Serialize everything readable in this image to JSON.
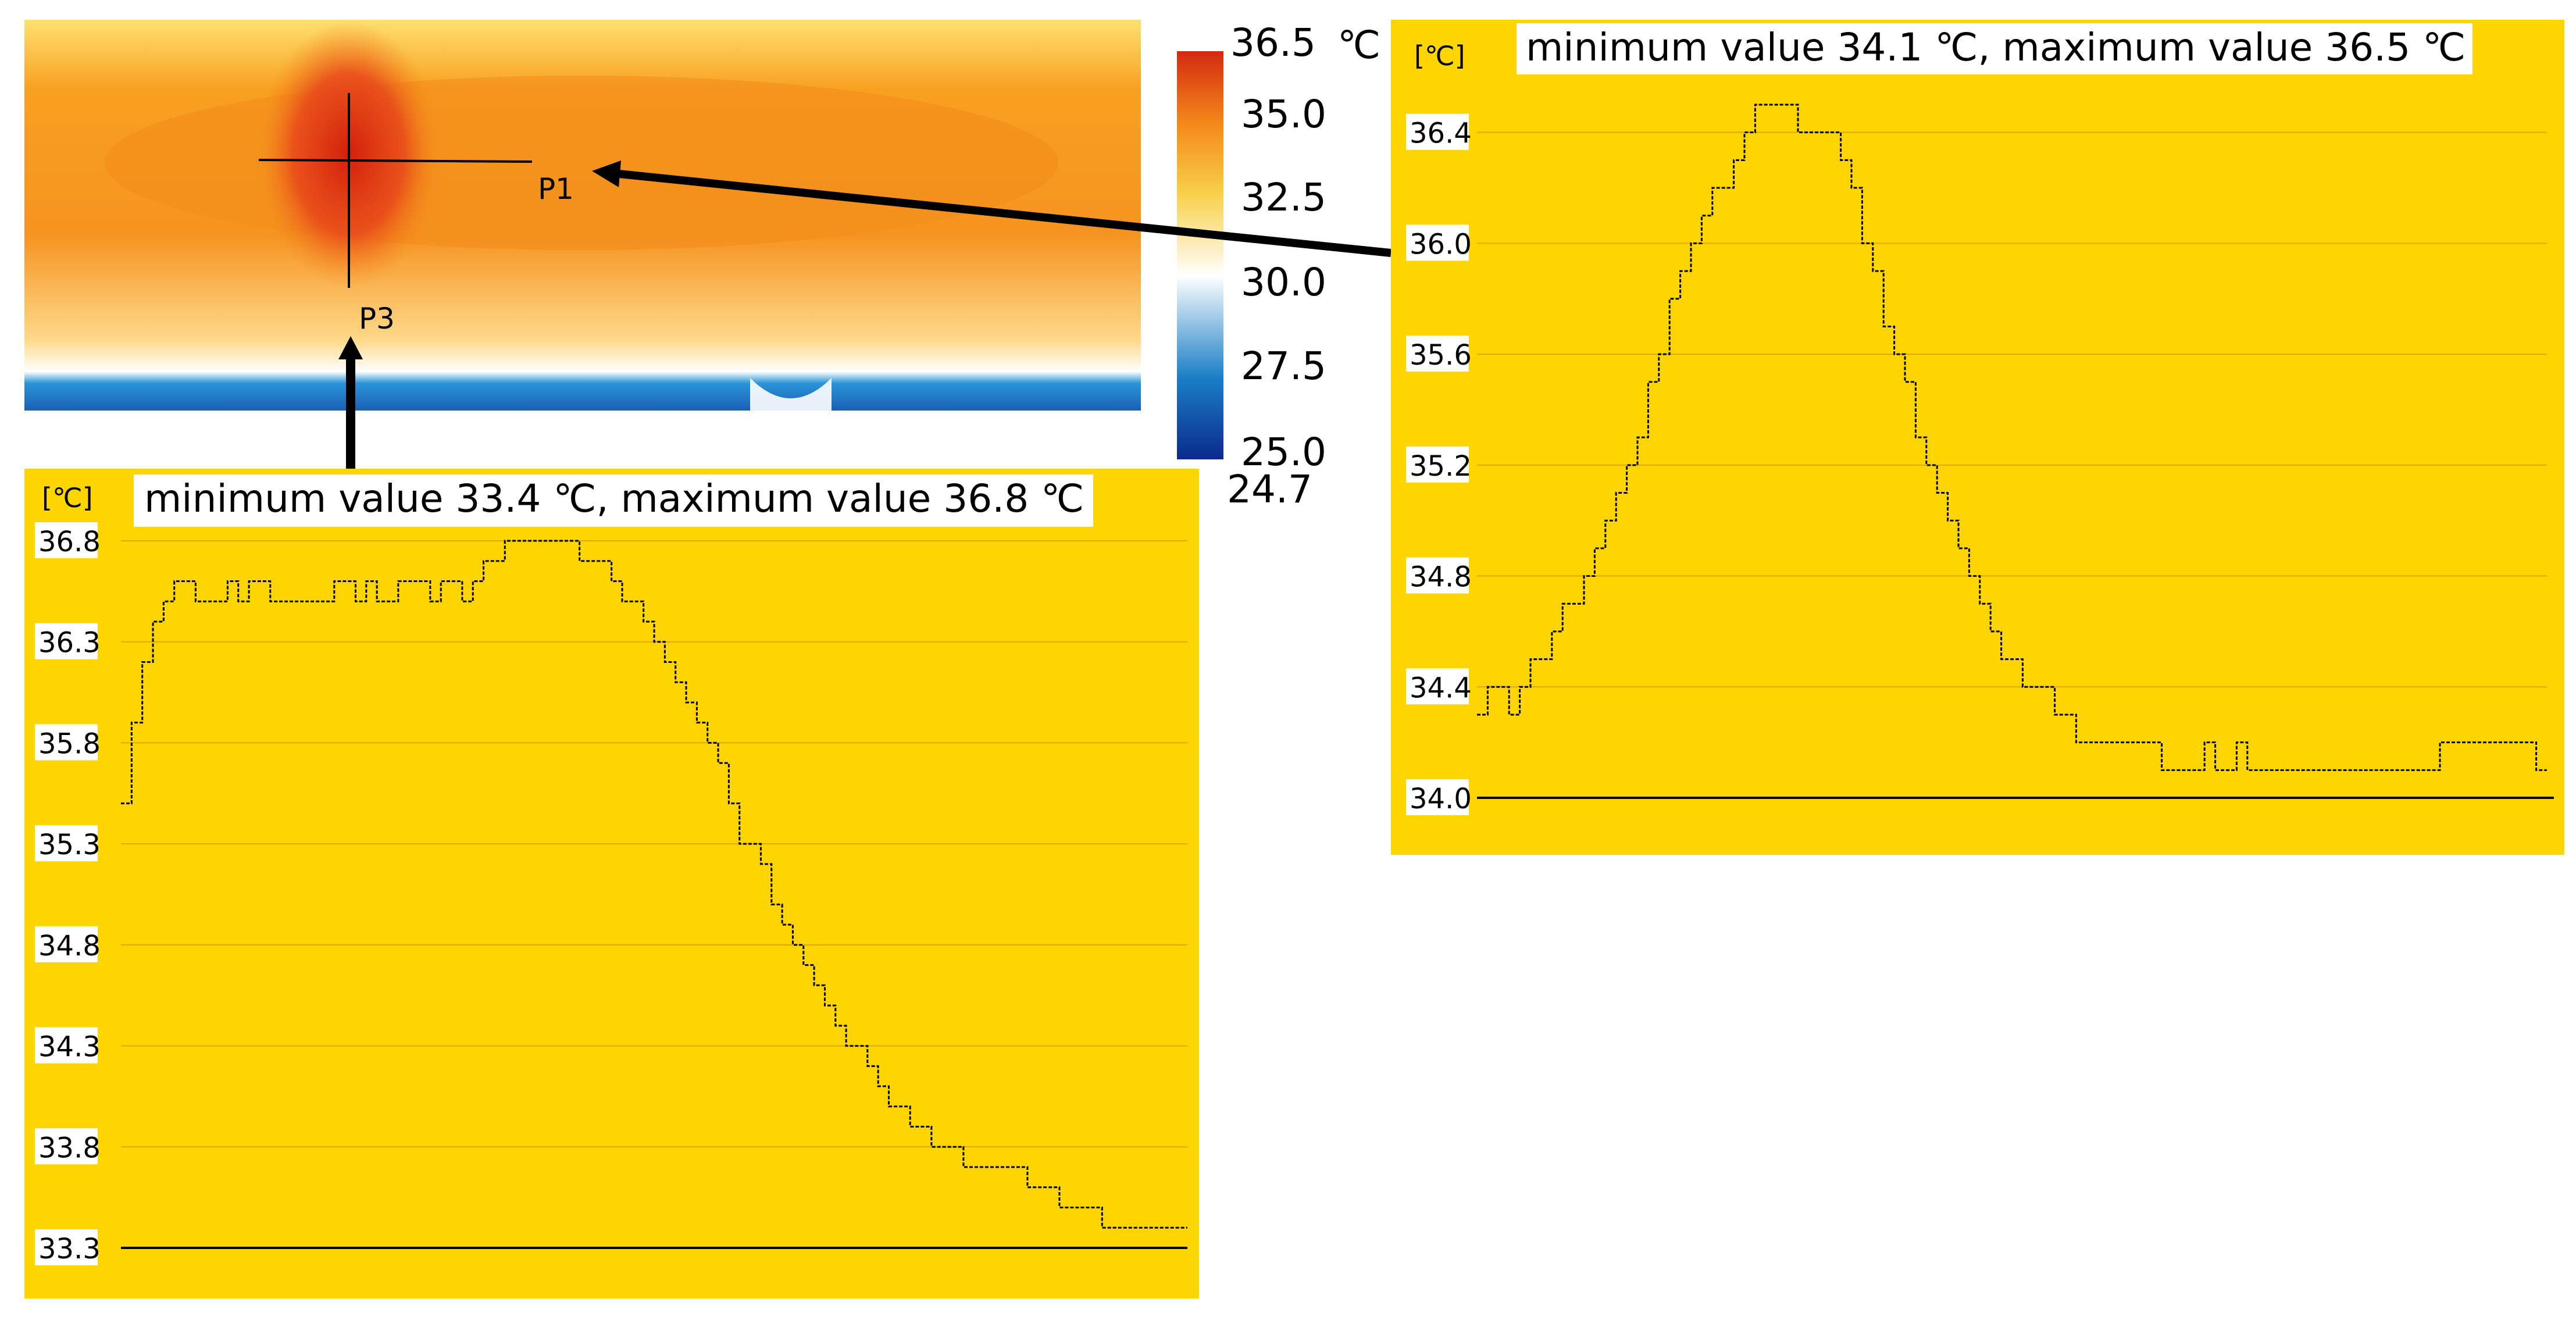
{
  "thermal_image": {
    "point_labels": [
      "P1",
      "P3"
    ]
  },
  "colorbar": {
    "ticks": [
      "36.5",
      "35.0",
      "32.5",
      "30.0",
      "27.5",
      "25.0"
    ],
    "unit": "℃",
    "bottom_label": "24.7",
    "colors": [
      "#0a2a8c",
      "#1a7fc6",
      "#ffffff",
      "#f8d04a",
      "#f58a1a",
      "#d22a10"
    ]
  },
  "chart_data": [
    {
      "type": "line",
      "id": "p3",
      "title": "minimum value 33.4 ℃, maximum value 36.8 ℃",
      "ylabel": "[℃]",
      "xlabel": "",
      "yticks": [
        "36.8",
        "36.3",
        "35.8",
        "35.3",
        "34.8",
        "34.3",
        "33.8",
        "33.3"
      ],
      "ylim": [
        33.3,
        36.8
      ],
      "grid": true,
      "background": "#ffd500",
      "series": [
        {
          "x": [
            0,
            1,
            2,
            3,
            4,
            5,
            6,
            7,
            8,
            9,
            10,
            11,
            12,
            13,
            14,
            15,
            16,
            17,
            18,
            19,
            20,
            21,
            22,
            23,
            24,
            25,
            26,
            27,
            28,
            29,
            30,
            31,
            32,
            33,
            34,
            35,
            36,
            37,
            38,
            39,
            40,
            41,
            42,
            43,
            44,
            45,
            46,
            47,
            48,
            49,
            50,
            51,
            52,
            53,
            54,
            55,
            56,
            57,
            58,
            59,
            60,
            61,
            62,
            63,
            64,
            65,
            66,
            67,
            68,
            69,
            70,
            71,
            72,
            73,
            74,
            75,
            76,
            77,
            78,
            79,
            80,
            81,
            82,
            83,
            84,
            85,
            86,
            87,
            88,
            89,
            90,
            91,
            92,
            93,
            94,
            95,
            96,
            97,
            98,
            99,
            100
          ],
          "values": [
            35.5,
            35.9,
            36.2,
            36.4,
            36.5,
            36.6,
            36.6,
            36.5,
            36.5,
            36.5,
            36.6,
            36.5,
            36.6,
            36.6,
            36.5,
            36.5,
            36.5,
            36.5,
            36.5,
            36.5,
            36.6,
            36.6,
            36.5,
            36.6,
            36.5,
            36.5,
            36.6,
            36.6,
            36.6,
            36.5,
            36.6,
            36.6,
            36.5,
            36.6,
            36.7,
            36.7,
            36.8,
            36.8,
            36.8,
            36.8,
            36.8,
            36.8,
            36.8,
            36.7,
            36.7,
            36.7,
            36.6,
            36.5,
            36.5,
            36.4,
            36.3,
            36.2,
            36.1,
            36.0,
            35.9,
            35.8,
            35.7,
            35.5,
            35.3,
            35.3,
            35.2,
            35.0,
            34.9,
            34.8,
            34.7,
            34.6,
            34.5,
            34.4,
            34.3,
            34.3,
            34.2,
            34.1,
            34.0,
            34.0,
            33.9,
            33.9,
            33.8,
            33.8,
            33.8,
            33.7,
            33.7,
            33.7,
            33.7,
            33.7,
            33.7,
            33.6,
            33.6,
            33.6,
            33.5,
            33.5,
            33.5,
            33.5,
            33.4,
            33.4,
            33.4,
            33.4,
            33.4,
            33.4,
            33.4,
            33.4,
            33.4
          ]
        }
      ]
    },
    {
      "type": "line",
      "id": "p1",
      "title": "minimum value 34.1 ℃, maximum value 36.5 ℃",
      "ylabel": "[℃]",
      "xlabel": "",
      "yticks": [
        "36.4",
        "36.0",
        "35.6",
        "35.2",
        "34.8",
        "34.4",
        "34.0"
      ],
      "ylim": [
        34.0,
        36.5
      ],
      "grid": true,
      "background": "#ffd500",
      "series": [
        {
          "x": [
            0,
            1,
            2,
            3,
            4,
            5,
            6,
            7,
            8,
            9,
            10,
            11,
            12,
            13,
            14,
            15,
            16,
            17,
            18,
            19,
            20,
            21,
            22,
            23,
            24,
            25,
            26,
            27,
            28,
            29,
            30,
            31,
            32,
            33,
            34,
            35,
            36,
            37,
            38,
            39,
            40,
            41,
            42,
            43,
            44,
            45,
            46,
            47,
            48,
            49,
            50,
            51,
            52,
            53,
            54,
            55,
            56,
            57,
            58,
            59,
            60,
            61,
            62,
            63,
            64,
            65,
            66,
            67,
            68,
            69,
            70,
            71,
            72,
            73,
            74,
            75,
            76,
            77,
            78,
            79,
            80,
            81,
            82,
            83,
            84,
            85,
            86,
            87,
            88,
            89,
            90,
            91,
            92,
            93,
            94,
            95,
            96,
            97,
            98,
            99,
            100
          ],
          "values": [
            34.3,
            34.4,
            34.4,
            34.3,
            34.4,
            34.5,
            34.5,
            34.6,
            34.7,
            34.7,
            34.8,
            34.9,
            35.0,
            35.1,
            35.2,
            35.3,
            35.5,
            35.6,
            35.8,
            35.9,
            36.0,
            36.1,
            36.2,
            36.2,
            36.3,
            36.4,
            36.5,
            36.5,
            36.5,
            36.5,
            36.4,
            36.4,
            36.4,
            36.4,
            36.3,
            36.2,
            36.0,
            35.9,
            35.7,
            35.6,
            35.5,
            35.3,
            35.2,
            35.1,
            35.0,
            34.9,
            34.8,
            34.7,
            34.6,
            34.5,
            34.5,
            34.4,
            34.4,
            34.4,
            34.3,
            34.3,
            34.2,
            34.2,
            34.2,
            34.2,
            34.2,
            34.2,
            34.2,
            34.2,
            34.1,
            34.1,
            34.1,
            34.1,
            34.2,
            34.1,
            34.1,
            34.2,
            34.1,
            34.1,
            34.1,
            34.1,
            34.1,
            34.1,
            34.1,
            34.1,
            34.1,
            34.1,
            34.1,
            34.1,
            34.1,
            34.1,
            34.1,
            34.1,
            34.1,
            34.1,
            34.2,
            34.2,
            34.2,
            34.2,
            34.2,
            34.2,
            34.2,
            34.2,
            34.2,
            34.1,
            34.1
          ]
        }
      ]
    }
  ]
}
